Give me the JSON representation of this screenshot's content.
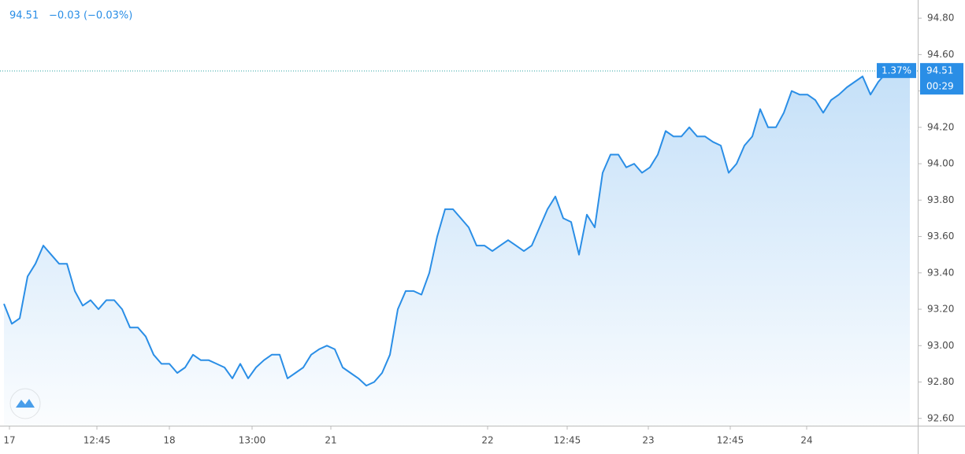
{
  "chart_data": {
    "type": "line",
    "header_price": "94.51",
    "header_change": "−0.03 (−0.03%)",
    "change_label": "1.37%",
    "countdown": "00:29",
    "last_value": 94.51,
    "x": [
      0,
      1,
      2,
      3,
      4,
      5,
      6,
      7,
      8,
      9,
      10,
      11,
      12,
      13,
      14,
      15,
      16,
      17,
      18,
      19,
      20,
      21,
      22,
      23,
      24,
      25,
      26,
      27,
      28,
      29,
      30,
      31,
      32,
      33,
      34,
      35,
      36,
      37,
      38,
      39,
      40,
      41,
      42,
      43,
      44,
      45,
      46,
      47,
      48,
      49,
      50,
      51,
      52,
      53,
      54,
      55,
      56,
      57,
      58,
      59,
      60,
      61,
      62,
      63,
      64,
      65,
      66,
      67,
      68,
      69,
      70,
      71,
      72,
      73,
      74,
      75,
      76,
      77,
      78,
      79,
      80,
      81,
      82,
      83,
      84,
      85,
      86,
      87,
      88,
      89,
      90,
      91,
      92,
      93,
      94,
      95,
      96,
      97,
      98,
      99,
      100,
      101,
      102,
      103,
      104,
      105,
      106,
      107,
      108,
      109,
      110,
      111,
      112,
      113,
      114,
      115
    ],
    "series": [
      {
        "color": "#2a8ee6",
        "values": [
          93.23,
          93.12,
          93.15,
          93.38,
          93.45,
          93.55,
          93.5,
          93.45,
          93.45,
          93.3,
          93.22,
          93.25,
          93.2,
          93.25,
          93.25,
          93.2,
          93.1,
          93.1,
          93.05,
          92.95,
          92.9,
          92.9,
          92.85,
          92.88,
          92.95,
          92.92,
          92.92,
          92.9,
          92.88,
          92.82,
          92.9,
          92.82,
          92.88,
          92.92,
          92.95,
          92.95,
          92.82,
          92.85,
          92.88,
          92.95,
          92.98,
          93.0,
          92.98,
          92.88,
          92.85,
          92.82,
          92.78,
          92.8,
          92.85,
          92.95,
          93.2,
          93.3,
          93.3,
          93.28,
          93.4,
          93.6,
          93.75,
          93.75,
          93.7,
          93.65,
          93.55,
          93.55,
          93.52,
          93.55,
          93.58,
          93.55,
          93.52,
          93.55,
          93.65,
          93.75,
          93.82,
          93.7,
          93.68,
          93.5,
          93.72,
          93.65,
          93.95,
          94.05,
          94.05,
          93.98,
          94.0,
          93.95,
          93.98,
          94.05,
          94.18,
          94.15,
          94.15,
          94.2,
          94.15,
          94.15,
          94.12,
          94.1,
          93.95,
          94.0,
          94.1,
          94.15,
          94.3,
          94.2,
          94.2,
          94.28,
          94.4,
          94.38,
          94.38,
          94.35,
          94.28,
          94.35,
          94.38,
          94.42,
          94.45,
          94.48,
          94.38,
          94.45,
          94.5,
          94.5,
          94.55,
          94.51
        ]
      }
    ],
    "xlim": [
      -0.5,
      116
    ],
    "xticks": [
      {
        "value": 0.7,
        "label": "17"
      },
      {
        "value": 11.8,
        "label": "12:45"
      },
      {
        "value": 21,
        "label": "18"
      },
      {
        "value": 31.5,
        "label": "13:00"
      },
      {
        "value": 41.5,
        "label": "21"
      },
      {
        "value": 61.4,
        "label": "22"
      },
      {
        "value": 71.5,
        "label": "12:45"
      },
      {
        "value": 81.8,
        "label": "23"
      },
      {
        "value": 92.2,
        "label": "12:45"
      },
      {
        "value": 101.9,
        "label": "24"
      }
    ],
    "ylim": [
      92.56,
      94.9
    ],
    "yticks": [
      {
        "value": 92.6,
        "label": "92.60"
      },
      {
        "value": 92.8,
        "label": "92.80"
      },
      {
        "value": 93,
        "label": "93.00"
      },
      {
        "value": 93.2,
        "label": "93.20"
      },
      {
        "value": 93.4,
        "label": "93.40"
      },
      {
        "value": 93.6,
        "label": "93.60"
      },
      {
        "value": 93.8,
        "label": "93.80"
      },
      {
        "value": 94,
        "label": "94.00"
      },
      {
        "value": 94.2,
        "label": "94.20"
      },
      {
        "value": 94.4,
        "label": "94.40"
      },
      {
        "value": 94.6,
        "label": "94.60"
      },
      {
        "value": 94.8,
        "label": "94.80"
      }
    ]
  }
}
